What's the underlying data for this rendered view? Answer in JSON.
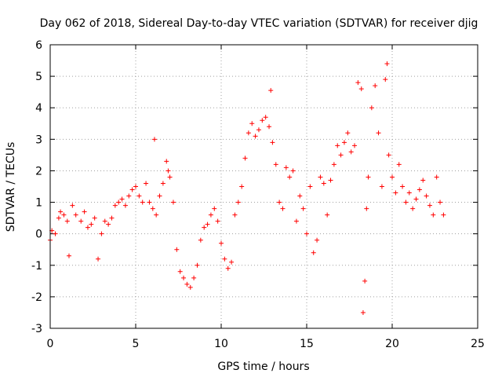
{
  "chart_data": {
    "type": "scatter",
    "title": "Day 062 of 2018, Sidereal Day-to-day VTEC variation (SDTVAR) for receiver djig",
    "xlabel": "GPS time / hours",
    "ylabel": "SDTVAR / TECUs",
    "xlim": [
      0,
      25
    ],
    "ylim": [
      -3,
      6
    ],
    "xticks": [
      "0",
      "5",
      "10",
      "15",
      "20",
      "25"
    ],
    "yticks": [
      "-3",
      "-2",
      "-1",
      "0",
      "1",
      "2",
      "3",
      "4",
      "5",
      "6"
    ],
    "grid": true,
    "marker": "+",
    "series": [
      {
        "name": "SDTVAR",
        "color": "#ff0000",
        "points": [
          [
            0.0,
            -0.2
          ],
          [
            0.1,
            0.1
          ],
          [
            0.3,
            0.0
          ],
          [
            0.5,
            0.5
          ],
          [
            0.6,
            0.7
          ],
          [
            0.8,
            0.6
          ],
          [
            1.0,
            0.4
          ],
          [
            1.1,
            -0.7
          ],
          [
            1.3,
            0.9
          ],
          [
            1.5,
            0.6
          ],
          [
            1.8,
            0.4
          ],
          [
            2.0,
            0.7
          ],
          [
            2.2,
            0.2
          ],
          [
            2.4,
            0.3
          ],
          [
            2.6,
            0.5
          ],
          [
            2.8,
            -0.8
          ],
          [
            3.0,
            0.0
          ],
          [
            3.2,
            0.4
          ],
          [
            3.4,
            0.3
          ],
          [
            3.6,
            0.5
          ],
          [
            3.8,
            0.9
          ],
          [
            4.0,
            1.0
          ],
          [
            4.2,
            1.1
          ],
          [
            4.4,
            0.9
          ],
          [
            4.6,
            1.2
          ],
          [
            4.8,
            1.4
          ],
          [
            5.0,
            1.5
          ],
          [
            5.2,
            1.2
          ],
          [
            5.4,
            1.0
          ],
          [
            5.6,
            1.6
          ],
          [
            5.8,
            1.0
          ],
          [
            6.0,
            0.8
          ],
          [
            6.1,
            3.0
          ],
          [
            6.2,
            0.6
          ],
          [
            6.4,
            1.2
          ],
          [
            6.6,
            1.6
          ],
          [
            6.8,
            2.3
          ],
          [
            6.9,
            2.0
          ],
          [
            7.0,
            1.8
          ],
          [
            7.2,
            1.0
          ],
          [
            7.4,
            -0.5
          ],
          [
            7.6,
            -1.2
          ],
          [
            7.8,
            -1.4
          ],
          [
            8.0,
            -1.6
          ],
          [
            8.2,
            -1.7
          ],
          [
            8.4,
            -1.4
          ],
          [
            8.6,
            -1.0
          ],
          [
            8.8,
            -0.2
          ],
          [
            9.0,
            0.2
          ],
          [
            9.2,
            0.3
          ],
          [
            9.4,
            0.6
          ],
          [
            9.6,
            0.8
          ],
          [
            9.8,
            0.4
          ],
          [
            10.0,
            -0.3
          ],
          [
            10.2,
            -0.8
          ],
          [
            10.4,
            -1.1
          ],
          [
            10.6,
            -0.9
          ],
          [
            10.8,
            0.6
          ],
          [
            11.0,
            1.0
          ],
          [
            11.2,
            1.5
          ],
          [
            11.4,
            2.4
          ],
          [
            11.6,
            3.2
          ],
          [
            11.8,
            3.5
          ],
          [
            12.0,
            3.1
          ],
          [
            12.2,
            3.3
          ],
          [
            12.4,
            3.6
          ],
          [
            12.6,
            3.7
          ],
          [
            12.8,
            3.4
          ],
          [
            13.0,
            2.9
          ],
          [
            13.2,
            2.2
          ],
          [
            13.4,
            1.0
          ],
          [
            13.6,
            0.8
          ],
          [
            13.8,
            2.1
          ],
          [
            14.0,
            1.8
          ],
          [
            14.2,
            2.0
          ],
          [
            14.4,
            0.4
          ],
          [
            14.6,
            1.2
          ],
          [
            14.8,
            0.8
          ],
          [
            15.0,
            0.0
          ],
          [
            15.2,
            1.5
          ],
          [
            15.4,
            -0.6
          ],
          [
            15.6,
            -0.2
          ],
          [
            15.8,
            1.8
          ],
          [
            16.0,
            1.6
          ],
          [
            16.2,
            0.6
          ],
          [
            16.4,
            1.7
          ],
          [
            16.6,
            2.2
          ],
          [
            16.8,
            2.8
          ],
          [
            17.0,
            2.5
          ],
          [
            17.2,
            2.9
          ],
          [
            17.4,
            3.2
          ],
          [
            17.6,
            2.6
          ],
          [
            17.8,
            2.8
          ],
          [
            18.0,
            4.8
          ],
          [
            18.2,
            4.6
          ],
          [
            18.3,
            -2.5
          ],
          [
            18.4,
            -1.5
          ],
          [
            18.5,
            0.8
          ],
          [
            18.6,
            1.8
          ],
          [
            18.8,
            4.0
          ],
          [
            19.0,
            4.7
          ],
          [
            19.2,
            3.2
          ],
          [
            19.4,
            1.5
          ],
          [
            19.6,
            4.9
          ],
          [
            19.7,
            5.4
          ],
          [
            19.8,
            2.5
          ],
          [
            20.0,
            1.8
          ],
          [
            20.2,
            1.3
          ],
          [
            20.4,
            2.2
          ],
          [
            20.6,
            1.5
          ],
          [
            20.8,
            1.0
          ],
          [
            21.0,
            1.3
          ],
          [
            21.2,
            0.8
          ],
          [
            21.4,
            1.1
          ],
          [
            21.6,
            1.4
          ],
          [
            21.8,
            1.7
          ],
          [
            22.0,
            1.2
          ],
          [
            22.2,
            0.9
          ],
          [
            22.4,
            0.6
          ],
          [
            22.6,
            1.8
          ],
          [
            22.8,
            1.0
          ],
          [
            23.0,
            0.6
          ],
          [
            12.9,
            4.55
          ]
        ]
      }
    ]
  }
}
